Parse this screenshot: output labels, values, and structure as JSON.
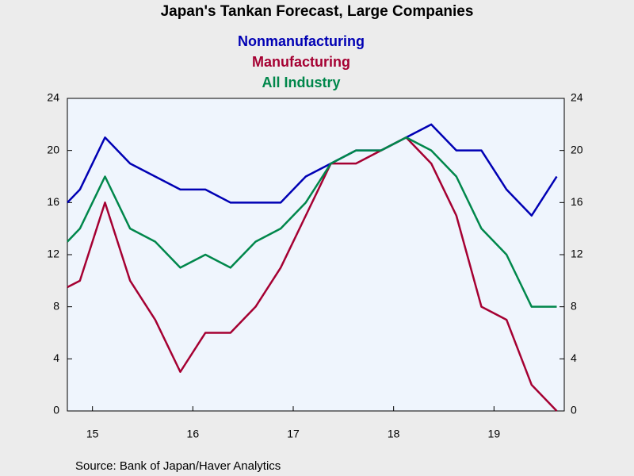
{
  "chart_data": {
    "type": "line",
    "title": "Japan's Tankan Forecast, Large Companies",
    "source": "Source:  Bank of Japan/Haver Analytics",
    "x": [
      2015.25,
      2015.375,
      2015.625,
      2015.875,
      2016.125,
      2016.375,
      2016.625,
      2016.875,
      2017.125,
      2017.375,
      2017.625,
      2017.875,
      2018.125,
      2018.375,
      2018.625,
      2018.875,
      2019.125,
      2019.375,
      2019.625,
      2019.875,
      2020.125
    ],
    "series": [
      {
        "name": "Nonmanufacturing",
        "color": "#0000b4",
        "values": [
          16,
          17,
          21,
          19,
          18,
          17,
          17,
          16,
          16,
          16,
          18,
          19,
          20,
          20,
          21,
          22,
          20,
          20,
          17,
          15,
          18
        ]
      },
      {
        "name": "Manufacturing",
        "color": "#a50032",
        "values": [
          9.5,
          10,
          16,
          10,
          7,
          3,
          6,
          6,
          8,
          11,
          15,
          19,
          19,
          20,
          21,
          19,
          15,
          8,
          7,
          2,
          0
        ]
      },
      {
        "name": "All Industry",
        "color": "#00874b",
        "values": [
          13,
          14,
          18,
          14,
          13,
          11,
          12,
          11,
          13,
          14,
          16,
          19,
          20,
          20,
          21,
          20,
          18,
          14,
          12,
          8,
          8
        ]
      }
    ],
    "xlim": [
      2015.25,
      2020.2
    ],
    "xticks": [
      {
        "value": 2015.5,
        "label": "15"
      },
      {
        "value": 2016.5,
        "label": "16"
      },
      {
        "value": 2017.5,
        "label": "17"
      },
      {
        "value": 2018.5,
        "label": "18"
      },
      {
        "value": 2019.5,
        "label": "19"
      }
    ],
    "ylim": [
      0,
      24
    ],
    "yticks": [
      0,
      4,
      8,
      12,
      16,
      20,
      24
    ],
    "y2lim": [
      0,
      24
    ],
    "y2ticks": [
      0,
      4,
      8,
      12,
      16,
      20,
      24
    ]
  }
}
